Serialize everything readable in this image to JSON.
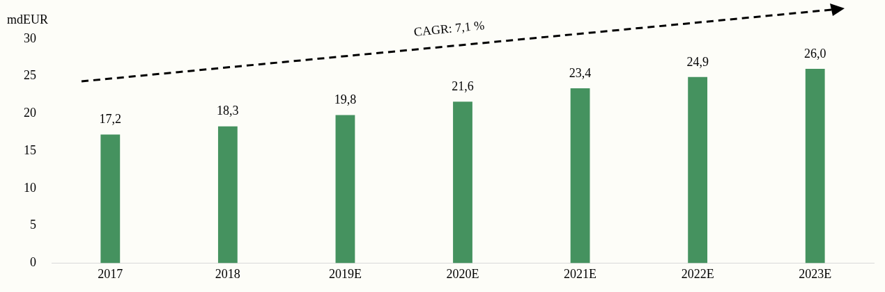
{
  "chart_data": {
    "type": "bar",
    "ylabel": "mdEUR",
    "categories": [
      "2017",
      "2018",
      "2019E",
      "2020E",
      "2021E",
      "2022E",
      "2023E"
    ],
    "values": [
      17.2,
      18.3,
      19.8,
      21.6,
      23.4,
      24.9,
      26.0
    ],
    "value_labels": [
      "17,2",
      "18,3",
      "19,8",
      "21,6",
      "23,4",
      "24,9",
      "26,0"
    ],
    "color": "#45925f",
    "ylim": [
      0,
      30
    ],
    "yticks": [
      0,
      5,
      10,
      15,
      20,
      25,
      30
    ],
    "grid": false,
    "legend": false,
    "annotations": [
      "CAGR: 7,1 %"
    ]
  }
}
